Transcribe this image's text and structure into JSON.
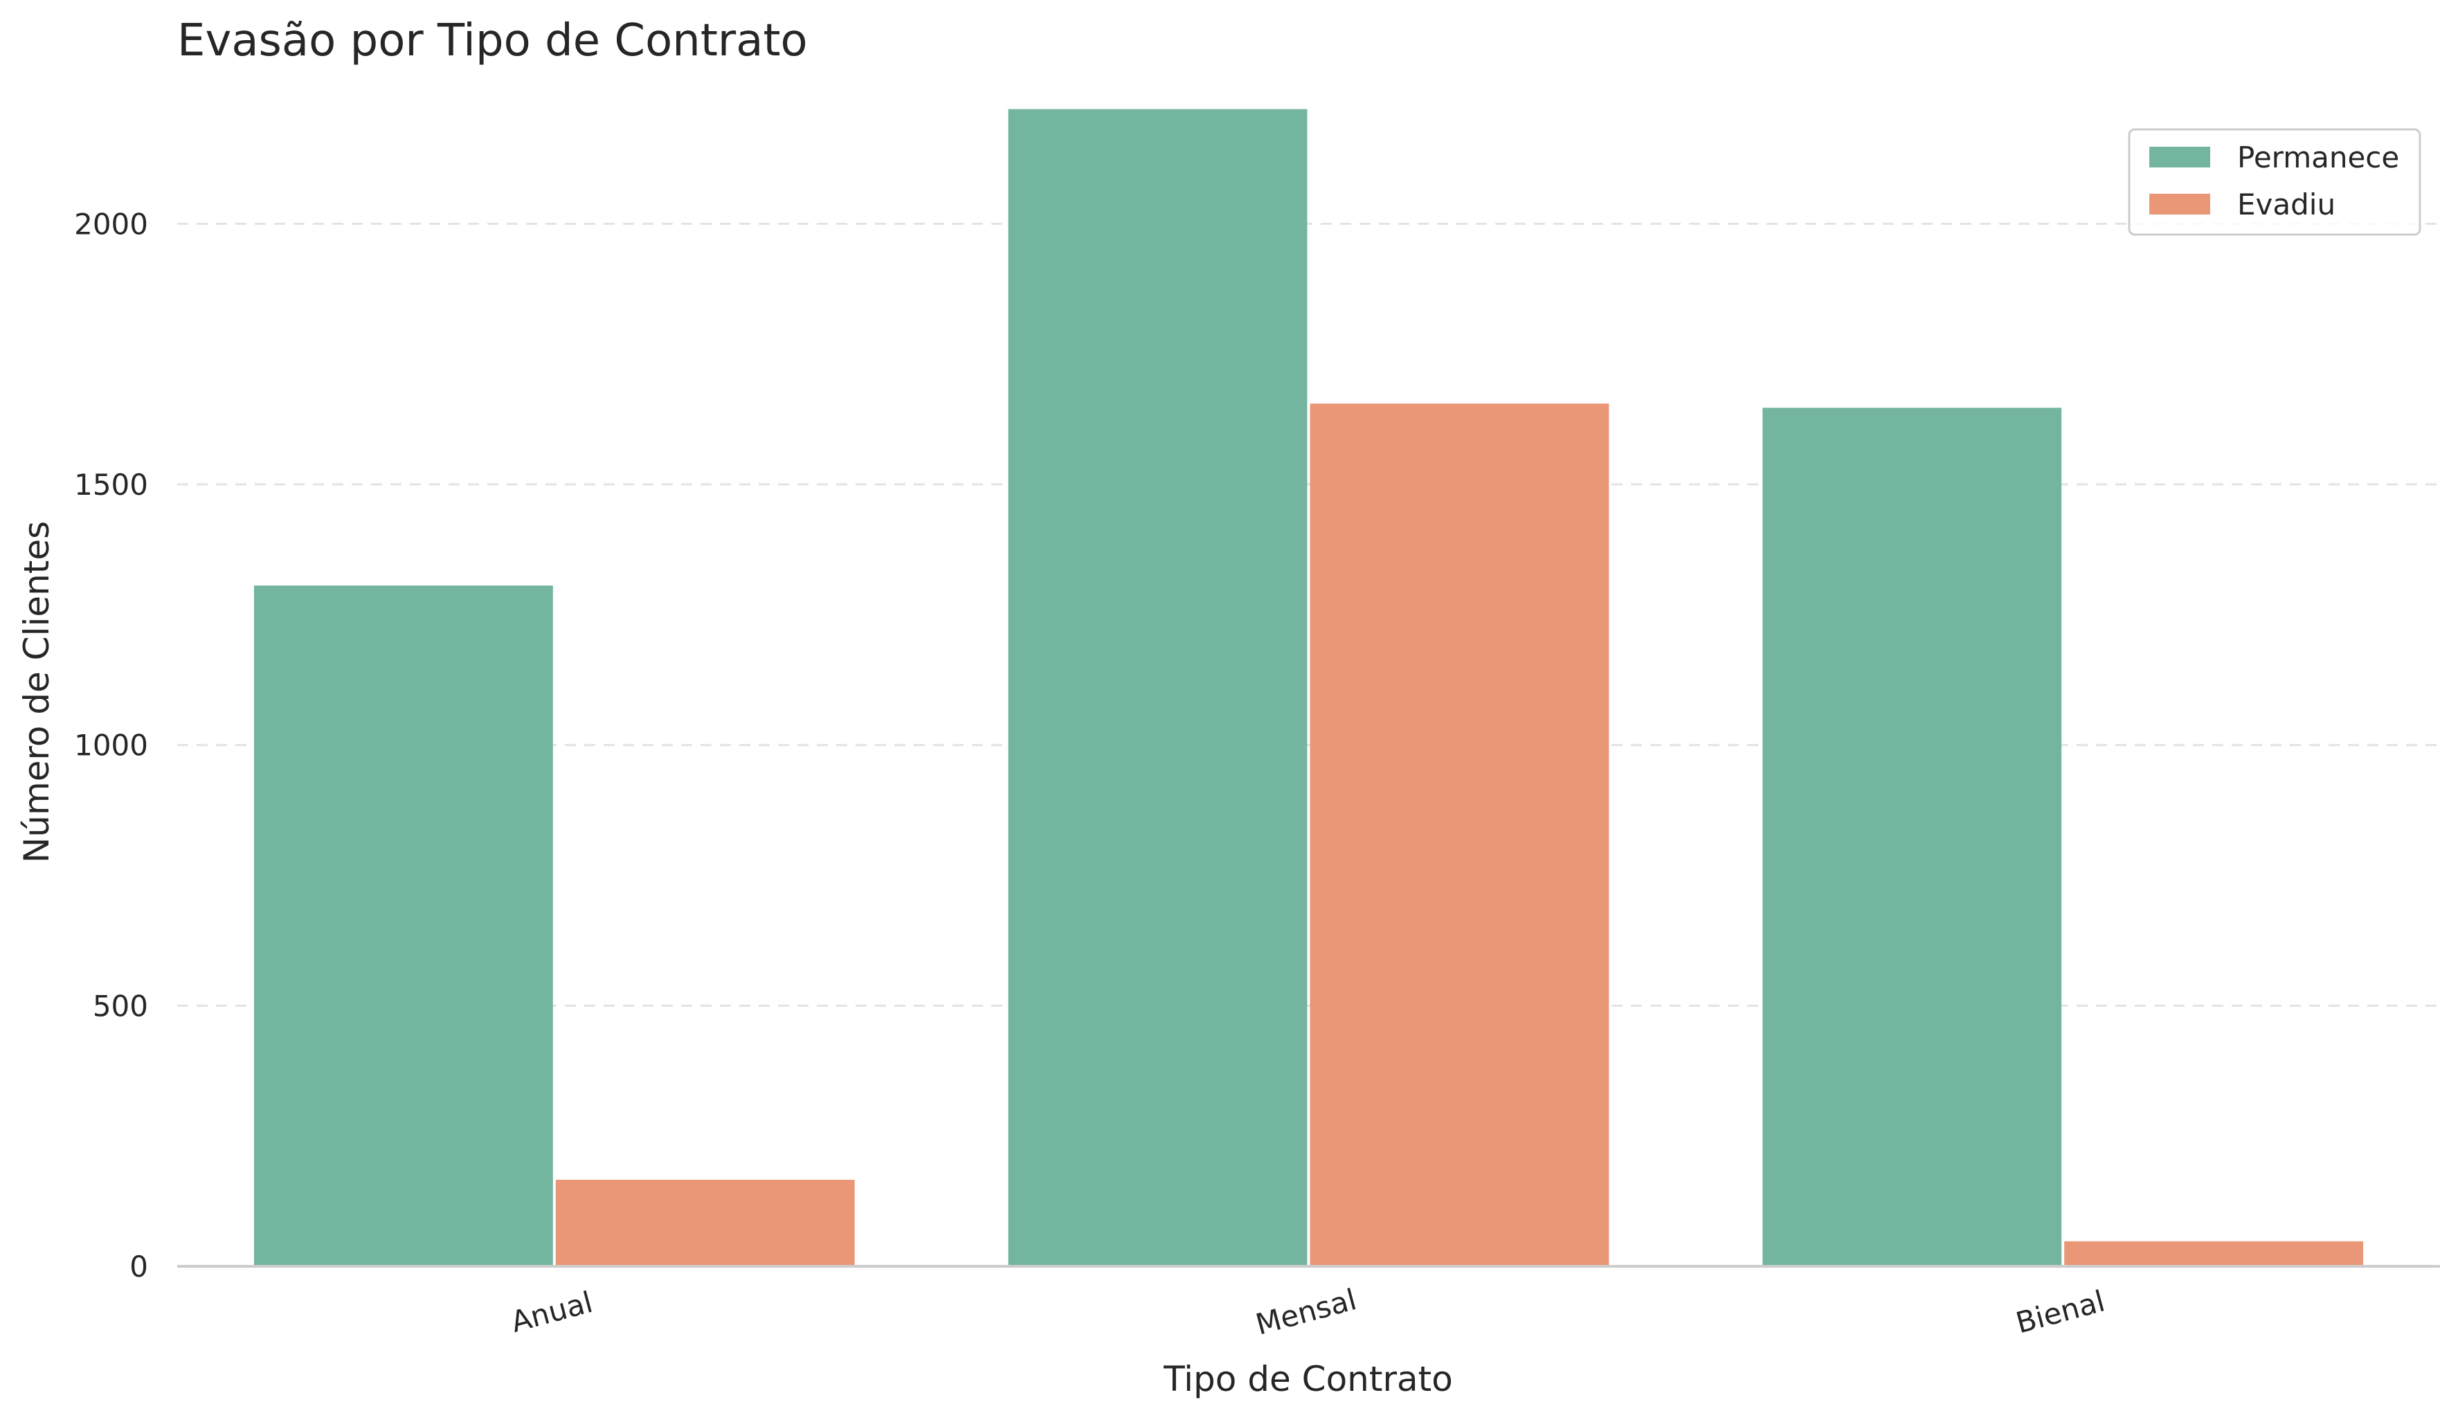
{
  "chart_data": {
    "type": "bar",
    "title": "Evasão por Tipo de Contrato",
    "xlabel": "Tipo de Contrato",
    "ylabel": "Número de Clientes",
    "categories": [
      "Anual",
      "Mensal",
      "Bienal"
    ],
    "series": [
      {
        "name": "Permanece",
        "color": "#74b5a0",
        "values": [
          1306,
          2220,
          1647
        ]
      },
      {
        "name": "Evadiu",
        "color": "#e99776",
        "values": [
          166,
          1655,
          48
        ]
      }
    ],
    "ylim": [
      0,
      2270
    ],
    "yticks": [
      0,
      500,
      1000,
      1500,
      2000
    ],
    "grid": "horizontal-dashed",
    "legend_position": "top-right"
  }
}
